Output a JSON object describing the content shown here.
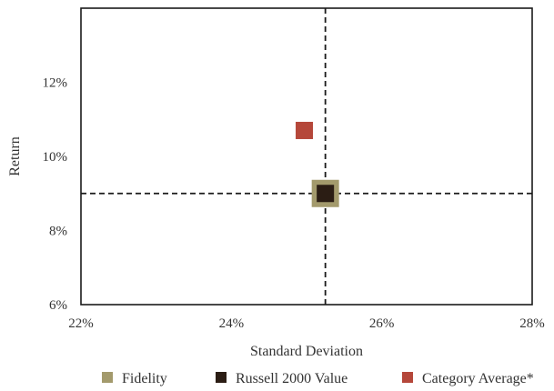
{
  "chart_data": {
    "type": "scatter",
    "xlabel": "Standard Deviation",
    "ylabel": "Return",
    "xlim": [
      22,
      28
    ],
    "ylim": [
      6,
      14
    ],
    "xticks": [
      22,
      24,
      26,
      28
    ],
    "yticks": [
      6,
      8,
      10,
      12
    ],
    "x_tick_labels": [
      "22%",
      "24%",
      "26%",
      "28%"
    ],
    "y_tick_labels": [
      "6%",
      "8%",
      "10%",
      "12%"
    ],
    "grid": false,
    "reference_lines": {
      "x": 25.25,
      "y": 9.0,
      "style": "dashed",
      "color": "#1a1a1a"
    },
    "legend_position": "bottom",
    "series": [
      {
        "name": "Fidelity",
        "x": 25.25,
        "y": 9.0,
        "color": "#a39a6c",
        "marker": "square",
        "marker_scale": "large"
      },
      {
        "name": "Russell 2000 Value",
        "x": 25.25,
        "y": 9.0,
        "color": "#2b1d14",
        "marker": "square",
        "marker_scale": "medium"
      },
      {
        "name": "Category Average*",
        "x": 24.97,
        "y": 10.7,
        "color": "#b5473a",
        "marker": "square",
        "marker_scale": "medium"
      }
    ]
  }
}
